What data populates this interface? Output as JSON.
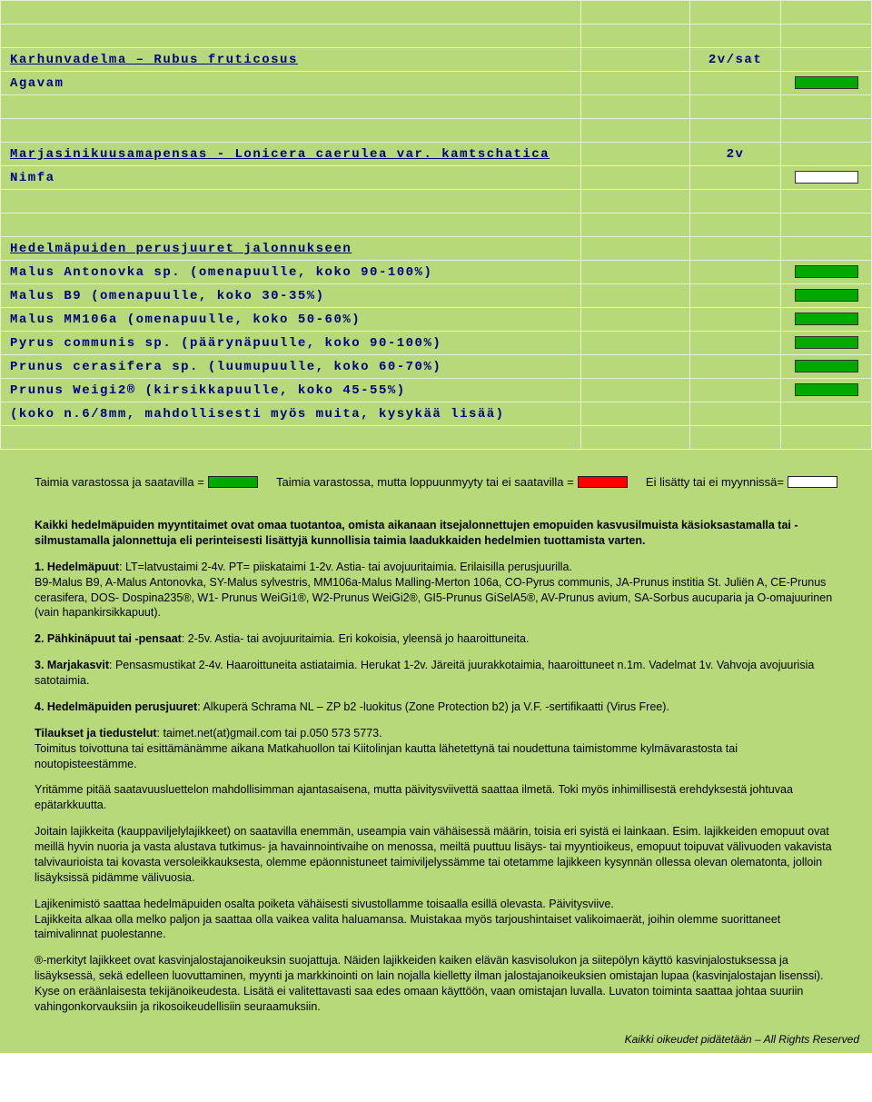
{
  "colors": {
    "green": "#00a800",
    "white": "#ffffff",
    "red": "#ff0000"
  },
  "rows": [
    {
      "c1": "",
      "c2": "",
      "c3": "",
      "c4": ""
    },
    {
      "c1": "",
      "c2": "",
      "c3": "",
      "c4": ""
    },
    {
      "c1_heading": "Karhunvadelma – Rubus fruticosus",
      "c2": "",
      "c3": "2v/sat",
      "c4": ""
    },
    {
      "c1": "Agavam",
      "c2": "",
      "c3": "",
      "c4_swatch": "green"
    },
    {
      "c1": "",
      "c2": "",
      "c3": "",
      "c4": ""
    },
    {
      "c1": "",
      "c2": "",
      "c3": "",
      "c4": ""
    },
    {
      "c1_heading": "Marjasinikuusamapensas - Lonicera caerulea var. kamtschatica",
      "c2": "",
      "c3": "2v",
      "c4": ""
    },
    {
      "c1": "Nimfa",
      "c2": "",
      "c3": "",
      "c4_swatch": "white"
    },
    {
      "c1": "",
      "c2": "",
      "c3": "",
      "c4": ""
    },
    {
      "c1": "",
      "c2": "",
      "c3": "",
      "c4": ""
    },
    {
      "c1_heading": "Hedelmäpuiden perusjuuret jalonnukseen",
      "c2": "",
      "c3": "",
      "c4": ""
    },
    {
      "c1": "Malus Antonovka sp. (omenapuulle, koko 90-100%)",
      "c2": "",
      "c3": "",
      "c4_swatch": "green"
    },
    {
      "c1": "Malus B9  (omenapuulle, koko 30-35%)",
      "c2": "",
      "c3": "",
      "c4_swatch": "green"
    },
    {
      "c1": "Malus MM106a  (omenapuulle, koko 50-60%)",
      "c2": "",
      "c3": "",
      "c4_swatch": "green"
    },
    {
      "c1": "Pyrus communis sp. (päärynäpuulle, koko 90-100%)",
      "c2": "",
      "c3": "",
      "c4_swatch": "green"
    },
    {
      "c1": "Prunus cerasifera sp. (luumupuulle, koko 60-70%)",
      "c2": "",
      "c3": "",
      "c4_swatch": "green"
    },
    {
      "c1": "Prunus Weigi2® (kirsikkapuulle, koko 45-55%)",
      "c2": "",
      "c3": "",
      "c4_swatch": "green"
    },
    {
      "c1": "(koko n.6/8mm, mahdollisesti myös muita, kysykää lisää)",
      "c2": "",
      "c3": "",
      "c4": ""
    },
    {
      "c1": "",
      "c2": "",
      "c3": "",
      "c4": ""
    }
  ],
  "legend": {
    "a_label": "Taimia varastossa ja saatavilla =",
    "a_color": "green",
    "b_label": "Taimia varastossa, mutta loppuunmyyty tai ei saatavilla =",
    "b_color": "red",
    "c_label": "Ei lisätty tai ei myynnissä=",
    "c_color": "white"
  },
  "info": {
    "p1": "Kaikki hedelmäpuiden myyntitaimet ovat omaa tuotantoa, omista aikanaan itsejalonnettujen emopuiden kasvusilmuista käsioksastamalla tai -silmustamalla jalonnettuja eli perinteisesti lisättyjä kunnollisia taimia laadukkaiden hedelmien tuottamista varten.",
    "n1_lead": "1.     Hedelmäpuut",
    "n1_rest": ": LT=latvustaimi 2-4v. PT= piiskataimi 1-2v. Astia- tai avojuuritaimia. Erilaisilla perusjuurilla.",
    "n1_sub": "B9-Malus B9, A-Malus Antonovka, SY-Malus sylvestris, MM106a-Malus Malling-Merton 106a, CO-Pyrus communis, JA-Prunus institia St. Juliën A, CE-Prunus cerasifera, DOS- Dospina235®, W1- Prunus WeiGi1®, W2-Prunus WeiGi2®, GI5-Prunus GiSelA5®, AV-Prunus avium, SA-Sorbus aucuparia ja O-omajuurinen (vain hapankirsikkapuut).",
    "n2_lead": "2.     Pähkinäpuut tai -pensaat",
    "n2_rest": ": 2-5v. Astia- tai avojuuritaimia. Eri kokoisia, yleensä jo haaroittuneita.",
    "n3_lead": "3.     Marjakasvit",
    "n3_rest": ": Pensasmustikat 2-4v. Haaroittuneita astiataimia. Herukat 1-2v. Järeitä juurakkotaimia, haaroittuneet n.1m. Vadelmat 1v. Vahvoja avojuurisia satotaimia.",
    "n4_lead": "4.     Hedelmäpuiden perusjuuret",
    "n4_rest": ": Alkuperä Schrama NL – ZP b2 -luokitus (Zone Protection b2) ja V.F. -sertifikaatti (Virus Free).",
    "p5a": "Tilaukset ja tiedustelut",
    "p5b": ": taimet.net(at)gmail.com tai  p.050 573 5773.",
    "p5c": "Toimitus toivottuna tai esittämänämme aikana Matkahuollon tai Kiitolinjan kautta lähetettynä tai noudettuna taimistomme kylmävarastosta tai noutopisteestämme.",
    "p6": "Yritämme pitää saatavuusluettelon mahdollisimman ajantasaisena, mutta päivitysviivettä saattaa ilmetä. Toki myös inhimillisestä erehdyksestä johtuvaa epätarkkuutta.",
    "p7": "Joitain lajikkeita (kauppaviljelylajikkeet) on saatavilla enemmän, useampia vain vähäisessä määrin, toisia eri syistä ei lainkaan. Esim. lajikkeiden emopuut ovat meillä hyvin nuoria ja vasta alustava tutkimus- ja havainnointivaihe on menossa, meiltä puuttuu lisäys- tai myyntioikeus, emopuut toipuvat välivuoden vakavista talvivaurioista tai kovasta versoleikkauksesta, olemme epäonnistuneet  taimiviljelyssämme tai otetamme lajikkeen kysynnän ollessa olevan olematonta, jolloin lisäyksissä pidämme välivuosia.",
    "p8a": "Lajikenimistö saattaa hedelmäpuiden osalta poiketa vähäisesti sivustollamme toisaalla esillä olevasta. Päivitysviive.",
    "p8b": "Lajikkeita alkaa olla melko paljon ja saattaa olla vaikea valita haluamansa. Muistakaa myös tarjoushintaiset valikoimaerät, joihin olemme suorittaneet taimivalinnat puolestanne.",
    "p9": "®-merkityt lajikkeet ovat kasvinjalostajanoikeuksin suojattuja. Näiden lajikkeiden kaiken elävän kasvisolukon ja siitepölyn käyttö kasvinjalostuksessa ja lisäyksessä, sekä edelleen luovuttaminen, myynti ja markkinointi on lain nojalla kielletty ilman jalostajanoikeuksien omistajan lupaa (kasvinjalostajan lisenssi). Kyse on eräänlaisesta tekijänoikeudesta. Lisätä ei valitettavasti saa edes omaan käyttöön, vaan omistajan luvalla. Luvaton toiminta saattaa johtaa suuriin vahingonkorvauksiin ja rikosoikeudellisiin seuraamuksiin.",
    "footer": "Kaikki oikeudet pidätetään – All Rights Reserved"
  }
}
